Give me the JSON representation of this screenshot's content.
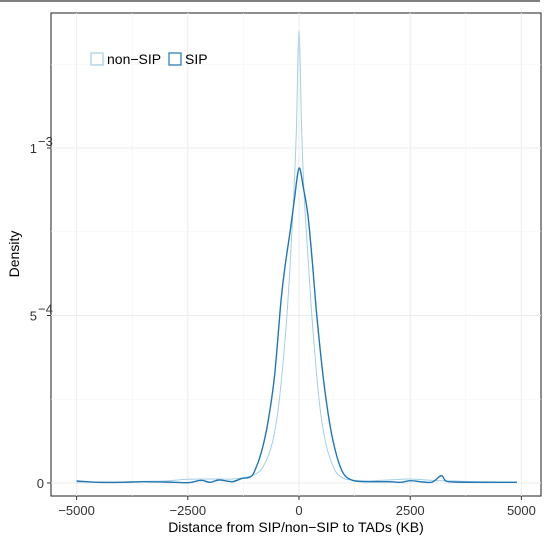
{
  "chart_data": {
    "type": "area",
    "title": "",
    "xlabel": "Distance from SIP/non−SIP to TADs (KB)",
    "ylabel": "Density",
    "xlim": [
      -5300,
      5500
    ],
    "ylim": [
      -3e-05,
      0.00141
    ],
    "x_ticks": [
      {
        "value": -5000,
        "label": "−5000"
      },
      {
        "value": -2500,
        "label": "−2500"
      },
      {
        "value": 0,
        "label": "0"
      },
      {
        "value": 2500,
        "label": "2500"
      },
      {
        "value": 5000,
        "label": "5000"
      }
    ],
    "y_ticks": [
      {
        "value": 0,
        "base": "0",
        "exp": ""
      },
      {
        "value": 0.0005,
        "base": "5",
        "exp": "−4"
      },
      {
        "value": 0.001,
        "base": "1",
        "exp": "−3"
      }
    ],
    "grid": true,
    "legend_position": "top-left",
    "series": [
      {
        "name": "non−SIP",
        "color": "#a6cee3",
        "x": [
          -5000,
          -4500,
          -4000,
          -3500,
          -3000,
          -2500,
          -2000,
          -1500,
          -1200,
          -1000,
          -800,
          -600,
          -450,
          -300,
          -200,
          -120,
          -60,
          0,
          60,
          120,
          200,
          300,
          450,
          600,
          800,
          1000,
          1200,
          1500,
          2000,
          2500,
          3000,
          3500,
          4000,
          4500,
          4900
        ],
        "values": [
          3e-06,
          3e-06,
          3e-06,
          5e-06,
          6e-06,
          1.1e-05,
          1.2e-05,
          1.2e-05,
          1.7e-05,
          2.5e-05,
          5e-05,
          0.00012,
          0.00024,
          0.00045,
          0.00065,
          0.00085,
          0.00105,
          0.00135,
          0.00105,
          0.00085,
          0.00068,
          0.00048,
          0.00025,
          0.00012,
          4e-05,
          1.4e-05,
          9e-06,
          6e-06,
          9e-06,
          1.2e-05,
          8e-06,
          6e-06,
          4e-06,
          3e-06,
          2e-06
        ]
      },
      {
        "name": "SIP",
        "color": "#1f78b4",
        "x": [
          -5000,
          -4500,
          -4000,
          -3500,
          -3000,
          -2500,
          -2200,
          -2000,
          -1800,
          -1500,
          -1300,
          -1100,
          -1000,
          -850,
          -700,
          -550,
          -400,
          -300,
          -200,
          -100,
          0,
          100,
          200,
          300,
          400,
          550,
          700,
          850,
          1000,
          1200,
          1500,
          2000,
          2300,
          2500,
          2800,
          3000,
          3200,
          3300,
          3500,
          4000,
          4500,
          4900
        ],
        "values": [
          6e-06,
          2e-06,
          2e-06,
          4e-06,
          3e-06,
          1e-06,
          8e-06,
          2e-06,
          9e-06,
          4e-06,
          1.3e-05,
          1.8e-05,
          3.5e-05,
          9e-05,
          0.00018,
          0.00032,
          0.00055,
          0.00066,
          0.00075,
          0.00085,
          0.00094,
          0.00088,
          0.0008,
          0.00066,
          0.0005,
          0.00031,
          0.00017,
          8e-05,
          2.8e-05,
          8e-06,
          4e-06,
          4e-06,
          2e-06,
          7e-06,
          3e-06,
          3e-06,
          2.2e-05,
          6e-06,
          3e-06,
          2e-06,
          2e-06,
          2e-06
        ]
      }
    ]
  }
}
